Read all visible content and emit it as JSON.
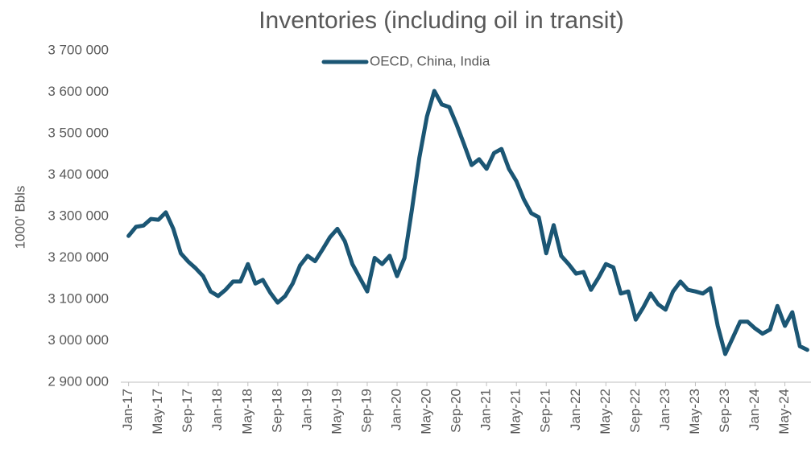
{
  "chart_data": {
    "type": "line",
    "title": "Inventories (including oil in transit)",
    "y_label": "1000' Bbls",
    "categories": [
      "Jan-17",
      null,
      null,
      null,
      "May-17",
      null,
      null,
      null,
      "Sep-17",
      null,
      null,
      null,
      "Jan-18",
      null,
      null,
      null,
      "May-18",
      null,
      null,
      null,
      "Sep-18",
      null,
      null,
      null,
      "Jan-19",
      null,
      null,
      null,
      "May-19",
      null,
      null,
      null,
      "Sep-19",
      null,
      null,
      null,
      "Jan-20",
      null,
      null,
      null,
      "May-20",
      null,
      null,
      null,
      "Sep-20",
      null,
      null,
      null,
      "Jan-21",
      null,
      null,
      null,
      "May-21",
      null,
      null,
      null,
      "Sep-21",
      null,
      null,
      null,
      "Jan-22",
      null,
      null,
      null,
      "May-22",
      null,
      null,
      null,
      "Sep-22",
      null,
      null,
      null,
      "Jan-23",
      null,
      null,
      null,
      "May-23",
      null,
      null,
      null,
      "Sep-23",
      null,
      null,
      null,
      "Jan-24",
      null,
      null,
      null,
      "May-24",
      null,
      null,
      null
    ],
    "series": [
      {
        "name": "OECD, China, India",
        "color": "#1b5674",
        "values": [
          3253000,
          3275000,
          3278000,
          3294000,
          3292000,
          3310000,
          3270000,
          3211000,
          3191000,
          3175000,
          3156000,
          3119000,
          3108000,
          3123000,
          3143000,
          3143000,
          3185000,
          3138000,
          3147000,
          3116000,
          3092000,
          3108000,
          3138000,
          3182000,
          3205000,
          3192000,
          3220000,
          3250000,
          3270000,
          3240000,
          3185000,
          3152000,
          3119000,
          3200000,
          3185000,
          3205000,
          3156000,
          3200000,
          3317000,
          3443000,
          3541000,
          3603000,
          3570000,
          3564000,
          3521000,
          3473000,
          3424000,
          3438000,
          3415000,
          3453000,
          3463000,
          3415000,
          3385000,
          3341000,
          3308000,
          3298000,
          3211000,
          3279000,
          3205000,
          3185000,
          3162000,
          3166000,
          3123000,
          3152000,
          3185000,
          3177000,
          3114000,
          3119000,
          3051000,
          3080000,
          3114000,
          3088000,
          3075000,
          3119000,
          3143000,
          3123000,
          3119000,
          3114000,
          3127000,
          3036000,
          2968000,
          3007000,
          3046000,
          3046000,
          3030000,
          3017000,
          3027000,
          3084000,
          3036000,
          3069000,
          2987000,
          2978000
        ]
      }
    ],
    "ylim": [
      2900000,
      3700000
    ],
    "yticks": [
      {
        "value": 2900000,
        "label": "2 900 000"
      },
      {
        "value": 3000000,
        "label": "3 000 000"
      },
      {
        "value": 3100000,
        "label": "3 100 000"
      },
      {
        "value": 3200000,
        "label": "3 200 000"
      },
      {
        "value": 3300000,
        "label": "3 300 000"
      },
      {
        "value": 3400000,
        "label": "3 400 000"
      },
      {
        "value": 3500000,
        "label": "3 500 000"
      },
      {
        "value": 3600000,
        "label": "3 600 000"
      },
      {
        "value": 3700000,
        "label": "3 700 000"
      }
    ],
    "legend": "top"
  }
}
